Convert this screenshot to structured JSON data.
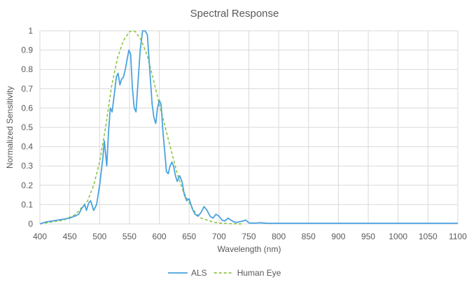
{
  "chart_data": {
    "type": "line",
    "title": "Spectral Response",
    "xlabel": "Wavelength (nm)",
    "ylabel": "Normalized Sensitivity",
    "xlim": [
      400,
      1100
    ],
    "ylim": [
      0,
      1
    ],
    "xticks": [
      "400",
      "450",
      "500",
      "550",
      "600",
      "650",
      "700",
      "750",
      "800",
      "850",
      "900",
      "950",
      "1000",
      "1050",
      "1100"
    ],
    "yticks": [
      "0",
      "0.1",
      "0.2",
      "0.3",
      "0.4",
      "0.5",
      "0.6",
      "0.7",
      "0.8",
      "0.9",
      "1"
    ],
    "grid": true,
    "legend": "bottom",
    "series": [
      {
        "name": "ALS",
        "color": "#4aa3df",
        "style": "solid",
        "points": [
          [
            400,
            0.0
          ],
          [
            410,
            0.01
          ],
          [
            420,
            0.015
          ],
          [
            430,
            0.02
          ],
          [
            440,
            0.025
          ],
          [
            450,
            0.03
          ],
          [
            458,
            0.04
          ],
          [
            465,
            0.05
          ],
          [
            470,
            0.08
          ],
          [
            475,
            0.1
          ],
          [
            478,
            0.07
          ],
          [
            482,
            0.11
          ],
          [
            485,
            0.12
          ],
          [
            490,
            0.07
          ],
          [
            495,
            0.1
          ],
          [
            500,
            0.2
          ],
          [
            505,
            0.33
          ],
          [
            508,
            0.43
          ],
          [
            512,
            0.3
          ],
          [
            515,
            0.48
          ],
          [
            518,
            0.6
          ],
          [
            521,
            0.58
          ],
          [
            525,
            0.68
          ],
          [
            528,
            0.76
          ],
          [
            531,
            0.78
          ],
          [
            534,
            0.72
          ],
          [
            537,
            0.75
          ],
          [
            540,
            0.76
          ],
          [
            543,
            0.8
          ],
          [
            546,
            0.85
          ],
          [
            549,
            0.9
          ],
          [
            552,
            0.88
          ],
          [
            555,
            0.7
          ],
          [
            558,
            0.6
          ],
          [
            561,
            0.58
          ],
          [
            564,
            0.72
          ],
          [
            568,
            0.9
          ],
          [
            572,
            1.0
          ],
          [
            576,
            1.0
          ],
          [
            580,
            0.98
          ],
          [
            584,
            0.8
          ],
          [
            588,
            0.62
          ],
          [
            591,
            0.55
          ],
          [
            594,
            0.52
          ],
          [
            597,
            0.6
          ],
          [
            600,
            0.64
          ],
          [
            603,
            0.62
          ],
          [
            606,
            0.48
          ],
          [
            609,
            0.38
          ],
          [
            612,
            0.27
          ],
          [
            615,
            0.26
          ],
          [
            618,
            0.3
          ],
          [
            621,
            0.32
          ],
          [
            624,
            0.3
          ],
          [
            627,
            0.25
          ],
          [
            630,
            0.22
          ],
          [
            634,
            0.25
          ],
          [
            638,
            0.22
          ],
          [
            642,
            0.15
          ],
          [
            646,
            0.12
          ],
          [
            650,
            0.13
          ],
          [
            655,
            0.08
          ],
          [
            660,
            0.05
          ],
          [
            665,
            0.04
          ],
          [
            670,
            0.06
          ],
          [
            675,
            0.09
          ],
          [
            680,
            0.07
          ],
          [
            685,
            0.04
          ],
          [
            690,
            0.03
          ],
          [
            695,
            0.05
          ],
          [
            700,
            0.04
          ],
          [
            705,
            0.02
          ],
          [
            710,
            0.015
          ],
          [
            715,
            0.03
          ],
          [
            720,
            0.02
          ],
          [
            725,
            0.01
          ],
          [
            730,
            0.008
          ],
          [
            740,
            0.015
          ],
          [
            745,
            0.02
          ],
          [
            750,
            0.005
          ],
          [
            760,
            0.004
          ],
          [
            770,
            0.006
          ],
          [
            780,
            0.003
          ],
          [
            800,
            0.003
          ],
          [
            850,
            0.003
          ],
          [
            900,
            0.003
          ],
          [
            950,
            0.003
          ],
          [
            1000,
            0.003
          ],
          [
            1050,
            0.003
          ],
          [
            1100,
            0.003
          ]
        ]
      },
      {
        "name": "Human Eye",
        "color": "#8dc63f",
        "style": "dashed",
        "points": [
          [
            400,
            0.0
          ],
          [
            420,
            0.01
          ],
          [
            440,
            0.02
          ],
          [
            460,
            0.05
          ],
          [
            480,
            0.12
          ],
          [
            490,
            0.2
          ],
          [
            500,
            0.32
          ],
          [
            510,
            0.5
          ],
          [
            520,
            0.71
          ],
          [
            530,
            0.86
          ],
          [
            540,
            0.95
          ],
          [
            550,
            0.995
          ],
          [
            555,
            1.0
          ],
          [
            560,
            0.995
          ],
          [
            570,
            0.95
          ],
          [
            580,
            0.87
          ],
          [
            590,
            0.75
          ],
          [
            600,
            0.62
          ],
          [
            610,
            0.5
          ],
          [
            620,
            0.38
          ],
          [
            630,
            0.26
          ],
          [
            640,
            0.17
          ],
          [
            650,
            0.11
          ],
          [
            660,
            0.06
          ],
          [
            670,
            0.03
          ],
          [
            680,
            0.02
          ],
          [
            690,
            0.01
          ],
          [
            700,
            0.004
          ],
          [
            720,
            0.001
          ],
          [
            740,
            0.0
          ]
        ]
      }
    ]
  }
}
